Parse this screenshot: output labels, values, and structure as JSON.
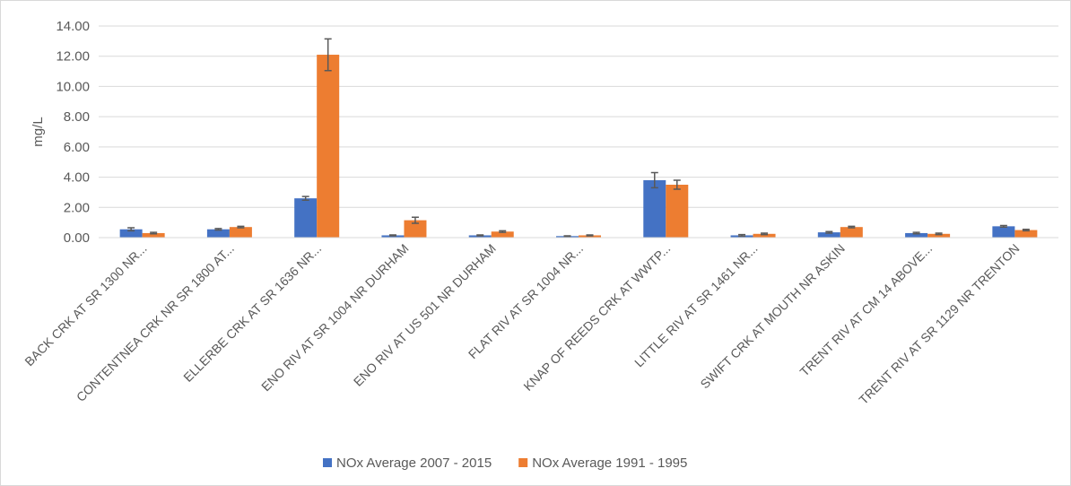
{
  "chart_data": {
    "type": "bar",
    "y_label": "mg/L",
    "categories": [
      "BACK CRK AT SR 1300 NR...",
      "CONTENTNEA CRK NR SR 1800 AT...",
      "ELLERBE CRK AT SR 1636 NR...",
      "ENO RIV AT SR 1004 NR DURHAM",
      "ENO RIV AT US 501 NR DURHAM",
      "FLAT RIV AT SR 1004 NR...",
      "KNAP OF REEDS CRK AT WWTP...",
      "LITTLE RIV AT SR 1461 NR...",
      "SWIFT CRK AT MOUTH NR ASKIN",
      "TRENT RIV AT CM 14 ABOVE...",
      "TRENT RIV AT SR 1129 NR TRENTON"
    ],
    "series": [
      {
        "name": "NOx Average 2007 - 2015",
        "color": "#4472c4",
        "values": [
          0.55,
          0.55,
          2.6,
          0.15,
          0.15,
          0.1,
          3.8,
          0.15,
          0.35,
          0.3,
          0.75
        ],
        "errors": [
          0.1,
          0.05,
          0.12,
          0.03,
          0.03,
          0.02,
          0.5,
          0.05,
          0.05,
          0.05,
          0.05
        ]
      },
      {
        "name": "NOx Average 1991 - 1995",
        "color": "#ed7d31",
        "values": [
          0.3,
          0.7,
          12.1,
          1.15,
          0.4,
          0.15,
          3.5,
          0.25,
          0.7,
          0.25,
          0.5
        ],
        "errors": [
          0.05,
          0.05,
          1.05,
          0.2,
          0.05,
          0.03,
          0.3,
          0.05,
          0.05,
          0.05,
          0.05
        ]
      }
    ],
    "ylim": [
      0,
      14
    ],
    "yticks": [
      {
        "value": 0,
        "label": "0.00"
      },
      {
        "value": 2,
        "label": "2.00"
      },
      {
        "value": 4,
        "label": "4.00"
      },
      {
        "value": 6,
        "label": "6.00"
      },
      {
        "value": 8,
        "label": "8.00"
      },
      {
        "value": 10,
        "label": "10.00"
      },
      {
        "value": 12,
        "label": "12.00"
      },
      {
        "value": 14,
        "label": "14.00"
      }
    ],
    "grid": true,
    "legend": "bottom"
  }
}
